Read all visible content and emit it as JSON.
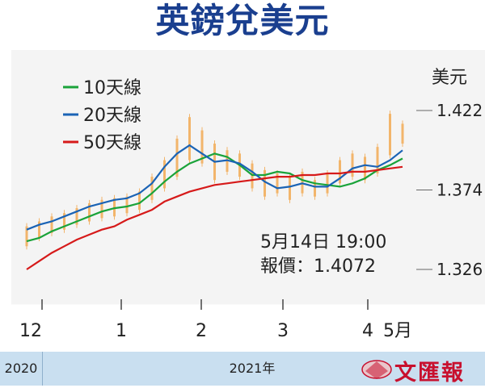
{
  "title": "英鎊兌美元",
  "y_unit": "美元",
  "footer": {
    "year_left": "2020",
    "year_main": "2021年",
    "logo_text": "文匯報"
  },
  "colors": {
    "ma10": "#1aa33a",
    "ma20": "#1a63b5",
    "ma50": "#d61a1a",
    "candle": "#f2b56b",
    "title": "#1a3f8f"
  },
  "chart_data": {
    "type": "line",
    "ylim": [
      1.326,
      1.422
    ],
    "yticks": [
      "1.422",
      "1.374",
      "1.326"
    ],
    "xticks": [
      {
        "label": "12",
        "idx": 0
      },
      {
        "label": "1",
        "idx": 1
      },
      {
        "label": "2",
        "idx": 2
      },
      {
        "label": "3",
        "idx": 3
      },
      {
        "label": "4",
        "idx": 4
      },
      {
        "label": "5月",
        "idx": 5
      }
    ],
    "annotation": {
      "line1": "5月14日 19:00",
      "line2": "報價：1.4072"
    },
    "series": [
      {
        "name": "10天線",
        "color_key": "ma10",
        "values": [
          1.343,
          1.345,
          1.349,
          1.352,
          1.355,
          1.358,
          1.361,
          1.363,
          1.364,
          1.366,
          1.372,
          1.379,
          1.385,
          1.39,
          1.393,
          1.396,
          1.394,
          1.389,
          1.383,
          1.383,
          1.385,
          1.384,
          1.38,
          1.378,
          1.377,
          1.376,
          1.378,
          1.381,
          1.386,
          1.389,
          1.393
        ]
      },
      {
        "name": "20天線",
        "color_key": "ma20",
        "values": [
          1.35,
          1.353,
          1.355,
          1.358,
          1.361,
          1.364,
          1.366,
          1.368,
          1.369,
          1.372,
          1.378,
          1.388,
          1.396,
          1.401,
          1.396,
          1.391,
          1.392,
          1.39,
          1.385,
          1.379,
          1.375,
          1.376,
          1.378,
          1.376,
          1.376,
          1.381,
          1.387,
          1.389,
          1.388,
          1.392,
          1.398
        ]
      },
      {
        "name": "50天線",
        "color_key": "ma50",
        "values": [
          1.326,
          1.331,
          1.336,
          1.34,
          1.344,
          1.347,
          1.35,
          1.352,
          1.356,
          1.359,
          1.362,
          1.367,
          1.37,
          1.373,
          1.375,
          1.377,
          1.378,
          1.379,
          1.38,
          1.381,
          1.382,
          1.382,
          1.383,
          1.383,
          1.384,
          1.384,
          1.385,
          1.385,
          1.386,
          1.387,
          1.388
        ]
      }
    ],
    "candles": [
      [
        1.34,
        1.352
      ],
      [
        1.345,
        1.355
      ],
      [
        1.348,
        1.358
      ],
      [
        1.35,
        1.36
      ],
      [
        1.353,
        1.363
      ],
      [
        1.355,
        1.366
      ],
      [
        1.357,
        1.368
      ],
      [
        1.358,
        1.369
      ],
      [
        1.36,
        1.37
      ],
      [
        1.362,
        1.373
      ],
      [
        1.368,
        1.382
      ],
      [
        1.375,
        1.392
      ],
      [
        1.382,
        1.405
      ],
      [
        1.392,
        1.418
      ],
      [
        1.39,
        1.41
      ],
      [
        1.38,
        1.402
      ],
      [
        1.385,
        1.398
      ],
      [
        1.382,
        1.396
      ],
      [
        1.375,
        1.39
      ],
      [
        1.37,
        1.386
      ],
      [
        1.372,
        1.384
      ],
      [
        1.368,
        1.382
      ],
      [
        1.372,
        1.385
      ],
      [
        1.37,
        1.38
      ],
      [
        1.372,
        1.384
      ],
      [
        1.378,
        1.392
      ],
      [
        1.382,
        1.396
      ],
      [
        1.38,
        1.394
      ],
      [
        1.384,
        1.4
      ],
      [
        1.395,
        1.42
      ],
      [
        1.402,
        1.414
      ]
    ]
  }
}
